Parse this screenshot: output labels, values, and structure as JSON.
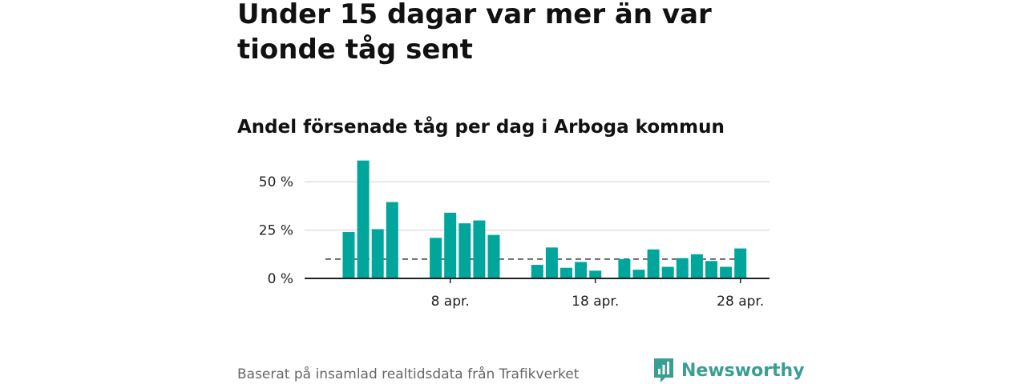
{
  "title": "Under 15 dagar var mer än var tionde tåg sent",
  "subtitle": "Andel försenade tåg per dag i Arboga kommun",
  "footer": {
    "source": "Baserat på insamlad realtidsdata från Trafikverket",
    "brand": "Newsworthy"
  },
  "colors": {
    "bar": "#00a69c",
    "reference_line": "#555555",
    "grid": "#d9d9d9",
    "axis": "#222222",
    "brand": "#3a9e94"
  },
  "chart_data": {
    "type": "bar",
    "title": "Andel försenade tåg per dag i Arboga kommun",
    "xlabel": "",
    "ylabel": "",
    "ylim": [
      0,
      65
    ],
    "y_unit": "%",
    "yticks": [
      0,
      25,
      50
    ],
    "ytick_labels": [
      "0 %",
      "25 %",
      "50 %"
    ],
    "grid": true,
    "categories": [
      "1 apr.",
      "2 apr.",
      "3 apr.",
      "4 apr.",
      "5 apr.",
      "6 apr.",
      "7 apr.",
      "8 apr.",
      "9 apr.",
      "10 apr.",
      "11 apr.",
      "12 apr.",
      "13 apr.",
      "14 apr.",
      "15 apr.",
      "16 apr.",
      "17 apr.",
      "18 apr.",
      "19 apr.",
      "20 apr.",
      "21 apr.",
      "22 apr.",
      "23 apr.",
      "24 apr.",
      "25 apr.",
      "26 apr.",
      "27 apr.",
      "28 apr.",
      "29 apr."
    ],
    "values": [
      24,
      61,
      25.5,
      39.5,
      null,
      null,
      21,
      34,
      28.5,
      30,
      22.5,
      null,
      null,
      7,
      16,
      5.5,
      8.5,
      4,
      null,
      10,
      4.5,
      15,
      6,
      10.5,
      12.5,
      9,
      6,
      15.5,
      null
    ],
    "xtick_categories": [
      "8 apr.",
      "18 apr.",
      "28 apr."
    ],
    "xtick_labels": [
      "8 apr.",
      "18 apr.",
      "28 apr."
    ],
    "reference_line": 10
  }
}
